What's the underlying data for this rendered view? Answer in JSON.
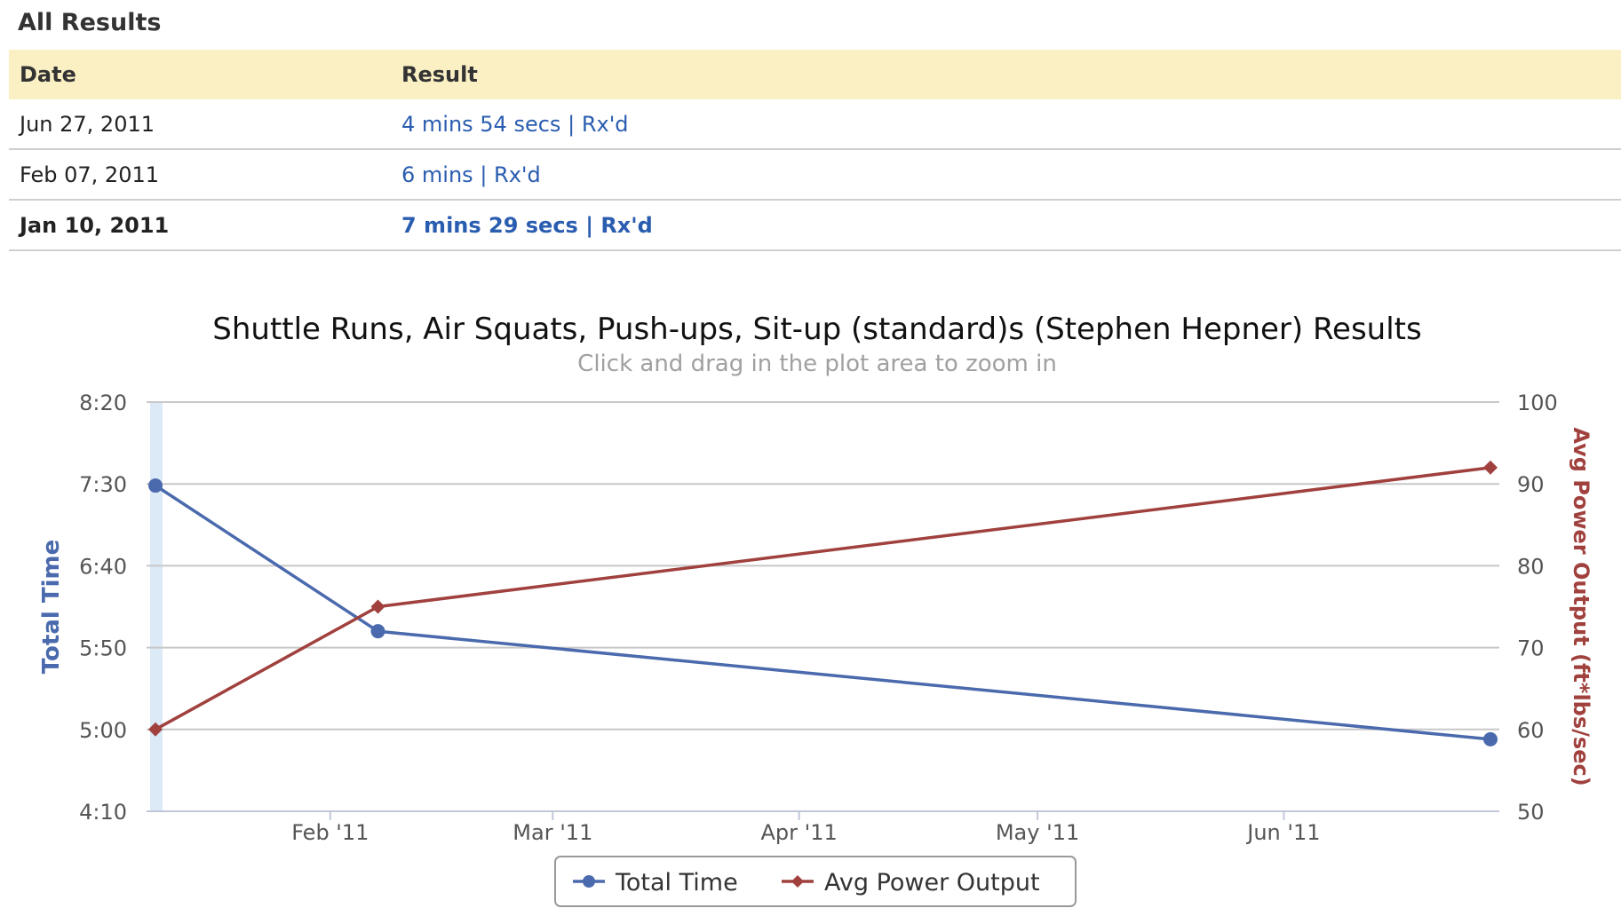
{
  "section_title": "All Results",
  "table": {
    "headers": {
      "date": "Date",
      "result": "Result"
    },
    "rows": [
      {
        "date": "Jun 27, 2011",
        "time": "4 mins 54 secs",
        "sep": "|",
        "rx": "Rx'd"
      },
      {
        "date": "Feb 07, 2011",
        "time": "6 mins",
        "sep": "|",
        "rx": "Rx'd"
      },
      {
        "date": "Jan 10, 2011",
        "time": "7 mins 29 secs",
        "sep": "|",
        "rx": "Rx'd"
      }
    ]
  },
  "chart_data": {
    "type": "line",
    "title": "Shuttle Runs, Air Squats, Push-ups, Sit-up (standard)s (Stephen Hepner) Results",
    "subtitle": "Click and drag in the plot area to zoom in",
    "x_range": [
      "2011-01-10",
      "2011-06-27"
    ],
    "x_ticks": [
      {
        "date": "2011-02-01",
        "label": "Feb '11"
      },
      {
        "date": "2011-03-01",
        "label": "Mar '11"
      },
      {
        "date": "2011-04-01",
        "label": "Apr '11"
      },
      {
        "date": "2011-05-01",
        "label": "May '11"
      },
      {
        "date": "2011-06-01",
        "label": "Jun '11"
      }
    ],
    "y_left": {
      "label": "Total Time",
      "ticks": [
        "4:10",
        "5:00",
        "5:50",
        "6:40",
        "7:30",
        "8:20"
      ],
      "range_seconds": [
        250,
        500
      ]
    },
    "y_right": {
      "label": "Avg Power Output (ft*lbs/sec)",
      "ticks": [
        "50",
        "60",
        "70",
        "80",
        "90",
        "100"
      ],
      "range": [
        50,
        100
      ]
    },
    "grid": true,
    "legend_position": "bottom-center",
    "series": [
      {
        "name": "Total Time",
        "axis": "left",
        "color": "#4a6aad",
        "marker": "circle",
        "points": [
          {
            "date": "2011-01-10",
            "seconds": 449
          },
          {
            "date": "2011-02-07",
            "seconds": 360
          },
          {
            "date": "2011-06-27",
            "seconds": 294
          }
        ]
      },
      {
        "name": "Avg Power Output",
        "axis": "right",
        "color": "#a0413e",
        "marker": "diamond",
        "points": [
          {
            "date": "2011-01-10",
            "value": 60
          },
          {
            "date": "2011-02-07",
            "value": 75
          },
          {
            "date": "2011-06-27",
            "value": 92
          }
        ]
      }
    ]
  }
}
